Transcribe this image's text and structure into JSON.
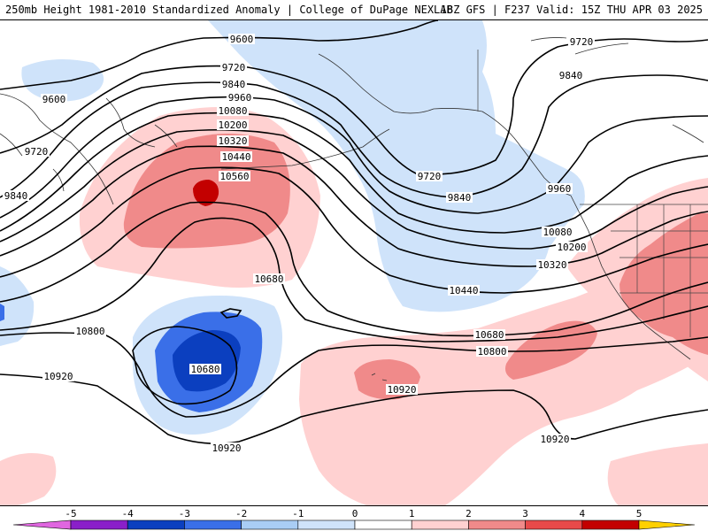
{
  "header": {
    "title_left": "250mb Height 1981-2010 Standardized Anomaly | College of DuPage NEXLAB",
    "title_right": "18Z GFS | F237 Valid: 15Z THU APR 03 2025"
  },
  "legend": {
    "ticks": [
      "-5",
      "-4",
      "-3",
      "-2",
      "-1",
      "0",
      "1",
      "2",
      "3",
      "4",
      "5"
    ],
    "colors": [
      "#e066e0",
      "#8a1fc9",
      "#0b3fbf",
      "#3a6fe8",
      "#a9cdf5",
      "#cfe3fa",
      "#ffffff",
      "#ffd1d1",
      "#f08a8a",
      "#e84a4a",
      "#c30000",
      "#ff8a00",
      "#ffd000"
    ]
  },
  "contour_labels": {
    "c9600_a": "9600",
    "c9600_b": "9600",
    "c9720_a": "9720",
    "c9720_b": "9720",
    "c9720_c": "9720",
    "c9720_d": "9720",
    "c9840_a": "9840",
    "c9840_b": "9840",
    "c9840_c": "9840",
    "c9840_d": "9840",
    "c9960_a": "9960",
    "c9960_b": "9960",
    "c10080_a": "10080",
    "c10080_b": "10080",
    "c10200_a": "10200",
    "c10200_b": "10200",
    "c10320_a": "10320",
    "c10320_b": "10320",
    "c10440_a": "10440",
    "c10440_b": "10440",
    "c10560": "10560",
    "c10680_a": "10680",
    "c10680_b": "10680",
    "c10680_c": "10680",
    "c10800_a": "10800",
    "c10800_b": "10800",
    "c10920_a": "10920",
    "c10920_b": "10920",
    "c10920_c": "10920",
    "c10920_d": "10920"
  }
}
